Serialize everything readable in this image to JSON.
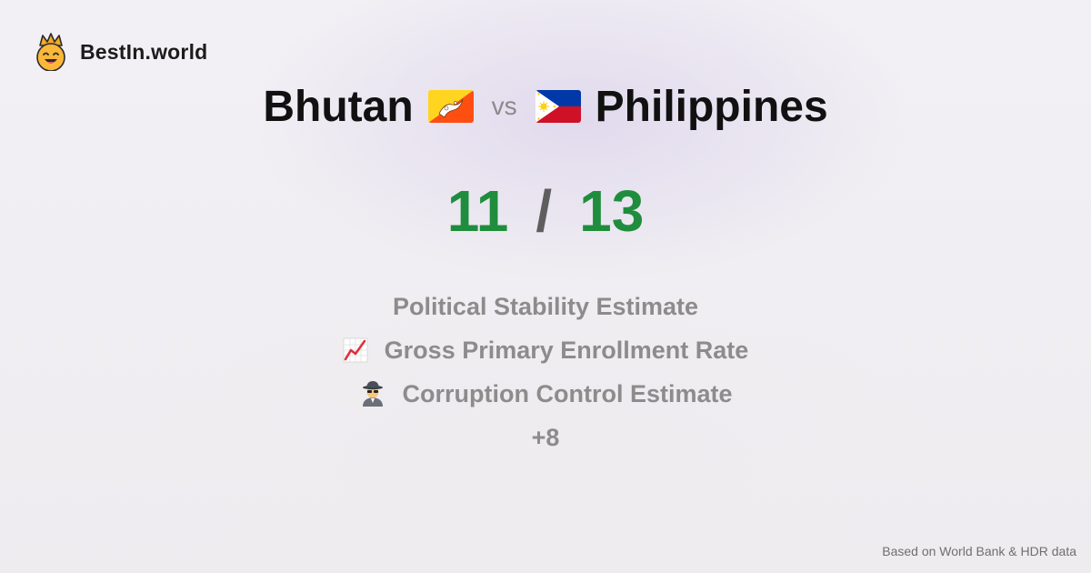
{
  "brand": {
    "name": "BestIn.world",
    "logo_icon": "crown-smiley-icon"
  },
  "title": {
    "left_country": "Bhutan",
    "left_flag_icon": "bhutan-flag-icon",
    "vs_label": "vs",
    "right_flag_icon": "philippines-flag-icon",
    "right_country": "Philippines"
  },
  "score": {
    "left": "11",
    "separator": "/",
    "right": "13"
  },
  "metrics": [
    {
      "label": "Political Stability Estimate",
      "icon": ""
    },
    {
      "label": "Gross Primary Enrollment Rate",
      "icon": "chart-increasing-icon"
    },
    {
      "label": "Corruption Control Estimate",
      "icon": "spy-icon"
    }
  ],
  "more": "+8",
  "footer": "Based on World Bank & HDR data",
  "colors": {
    "score_green": "#1f8d3d",
    "muted_text": "#8c8c8c"
  }
}
